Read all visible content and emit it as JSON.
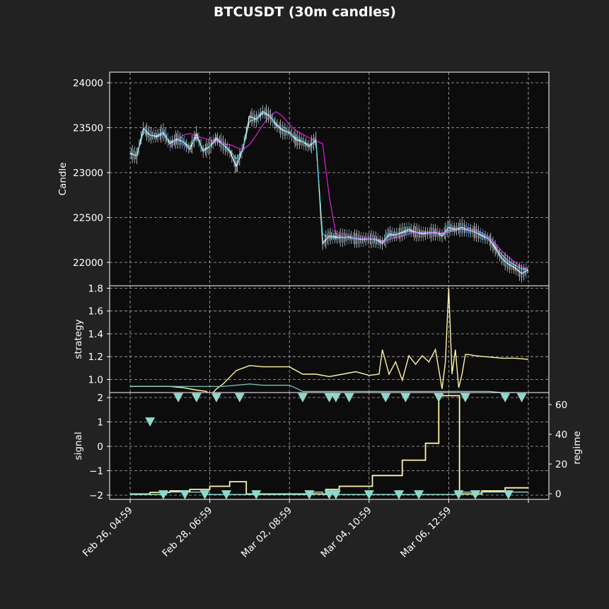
{
  "title": "BTCUSDT (30m candles)",
  "colors": {
    "background": "#222222",
    "axes_bg": "#0c0c0c",
    "text": "#ffffff",
    "grid": "#b0b0b0",
    "candle_line": "#e8e8e8",
    "candle_alt": "#5bb0f0",
    "ema_fast": "#40d0d0",
    "ema_slow": "#e020e0",
    "strategy": "#fff6a8",
    "benchmark": "#7fd0c8",
    "regime": "#fff6a8",
    "signal": "#8fd8cc"
  },
  "x_ticks": [
    "Feb 26, 04:59",
    "Feb 28, 06:59",
    "Mar 02, 08:59",
    "Mar 04, 10:59",
    "Mar 06, 12:59"
  ],
  "chart_data": [
    {
      "type": "line",
      "ylabel": "Candle",
      "yticks": [
        "24000",
        "23500",
        "23000",
        "22500",
        "22000"
      ],
      "ylim": [
        21850,
        24120
      ],
      "x_hours": [
        0,
        4,
        8,
        12,
        16,
        20,
        24,
        28,
        32,
        36,
        40,
        44,
        48,
        52,
        56,
        60,
        64,
        68,
        72,
        76,
        80,
        84,
        88,
        92,
        96,
        100,
        104,
        108,
        112,
        116,
        120,
        124,
        128,
        132,
        136,
        140,
        144,
        148,
        152,
        156,
        160,
        164,
        168,
        172,
        176,
        180,
        184,
        188,
        192,
        196,
        200,
        204,
        208,
        212,
        216,
        220,
        224,
        228,
        232,
        236,
        240
      ],
      "series": [
        {
          "values": [
            23260,
            23230,
            23520,
            23450,
            23440,
            23480,
            23360,
            23410,
            23380,
            23300,
            23460,
            23280,
            23330,
            23420,
            23350,
            23280,
            23120,
            23310,
            23650,
            23620,
            23700,
            23660,
            23560,
            23500,
            23480,
            23400,
            23380,
            23330,
            23400,
            22300,
            22380,
            22370,
            22360,
            22370,
            22350,
            22340,
            22350,
            22340,
            22300,
            22400,
            22390,
            22420,
            22450,
            22420,
            22400,
            22410,
            22420,
            22380,
            22470,
            22450,
            22470,
            22440,
            22420,
            22380,
            22350,
            22250,
            22140,
            22080,
            22040,
            21980,
            22020
          ]
        },
        {
          "values": [
            23250,
            23230,
            23480,
            23450,
            23430,
            23460,
            23380,
            23400,
            23380,
            23330,
            23430,
            23300,
            23330,
            23400,
            23350,
            23290,
            23200,
            23300,
            23600,
            23620,
            23680,
            23650,
            23570,
            23510,
            23470,
            23420,
            23380,
            23350,
            23380,
            22400,
            22360,
            22360,
            22360,
            22360,
            22350,
            22345,
            22345,
            22340,
            22320,
            22380,
            22390,
            22410,
            22430,
            22420,
            22410,
            22410,
            22410,
            22400,
            22440,
            22450,
            22450,
            22440,
            22420,
            22390,
            22350,
            22270,
            22180,
            22110,
            22070,
            22030,
            22020
          ]
        },
        {
          "values": [
            null,
            null,
            null,
            null,
            null,
            null,
            23320,
            23390,
            23450,
            23470,
            23440,
            23420,
            23400,
            23380,
            23360,
            23350,
            23320,
            23300,
            23350,
            23450,
            23560,
            23650,
            23700,
            23650,
            23560,
            23500,
            23460,
            23420,
            23390,
            23360,
            22800,
            22400,
            22370,
            22360,
            22355,
            22350,
            22350,
            22345,
            22330,
            22340,
            22360,
            22380,
            22400,
            22420,
            22420,
            22420,
            22415,
            22410,
            22420,
            22440,
            22450,
            22460,
            22440,
            22410,
            22370,
            22300,
            22220,
            22150,
            22100,
            22050,
            22020
          ]
        }
      ]
    },
    {
      "type": "line",
      "ylabel": "strategy",
      "yticks": [
        "1.8",
        "1.6",
        "1.4",
        "1.2",
        "1.0"
      ],
      "ylim": [
        0.95,
        1.82
      ],
      "x_hours": [
        0,
        8,
        16,
        24,
        32,
        40,
        46,
        48,
        52,
        56,
        64,
        72,
        80,
        88,
        96,
        104,
        112,
        120,
        128,
        136,
        144,
        150,
        152,
        156,
        160,
        164,
        168,
        172,
        176,
        180,
        184,
        188,
        190,
        192,
        194,
        196,
        198,
        200,
        202,
        204,
        208,
        216,
        224,
        232,
        240
      ],
      "series": [
        {
          "values": [
            1.0,
            1.0,
            1.0,
            1.0,
            0.99,
            0.97,
            0.96,
            0.92,
            0.98,
            1.02,
            1.13,
            1.17,
            1.16,
            1.16,
            1.16,
            1.1,
            1.1,
            1.08,
            1.1,
            1.12,
            1.09,
            1.1,
            1.3,
            1.1,
            1.2,
            1.05,
            1.25,
            1.18,
            1.25,
            1.2,
            1.3,
            0.98,
            1.2,
            1.8,
            1.1,
            1.3,
            0.99,
            1.1,
            1.26,
            1.26,
            1.25,
            1.24,
            1.23,
            1.23,
            1.22
          ]
        },
        {
          "values": [
            1.0,
            1.0,
            1.0,
            1.0,
            1.0,
            1.0,
            1.0,
            1.0,
            1.0,
            1.0,
            1.01,
            1.02,
            1.01,
            1.01,
            1.01,
            0.96,
            0.96,
            0.96,
            0.96,
            0.96,
            0.96,
            0.96,
            0.96,
            0.96,
            0.96,
            0.96,
            0.96,
            0.96,
            0.96,
            0.96,
            0.96,
            0.96,
            0.96,
            0.96,
            0.96,
            0.96,
            0.96,
            0.96,
            0.96,
            0.96,
            0.96,
            0.96,
            0.95,
            0.95,
            0.94
          ]
        }
      ]
    },
    {
      "type": "line+scatter",
      "ylabel": "signal",
      "y2label": "regime",
      "yticks": [
        "2",
        "1",
        "0",
        "−1",
        "−2"
      ],
      "ylim": [
        -2.2,
        2.2
      ],
      "y2ticks": [
        "60",
        "40",
        "20",
        "0"
      ],
      "y2lim": [
        -3.5,
        66
      ],
      "regime_steps": [
        [
          0,
          0
        ],
        [
          12,
          1
        ],
        [
          24,
          2
        ],
        [
          36,
          3
        ],
        [
          48,
          5
        ],
        [
          60,
          8
        ],
        [
          70,
          0
        ],
        [
          108,
          0
        ],
        [
          118,
          3
        ],
        [
          126,
          5
        ],
        [
          146,
          12
        ],
        [
          164,
          22
        ],
        [
          178,
          33
        ],
        [
          186,
          64
        ],
        [
          198,
          64
        ],
        [
          198.5,
          0
        ],
        [
          212,
          2
        ],
        [
          226,
          4
        ],
        [
          240,
          4
        ]
      ],
      "markers_top_x_hours": [
        29,
        40,
        52,
        66,
        104,
        120,
        124,
        132,
        154,
        166,
        186,
        202,
        226,
        236
      ],
      "markers_mid_x_hours": [
        12
      ],
      "markers_bottom_x_hours": [
        20,
        33,
        45,
        58,
        76,
        108,
        120,
        124,
        144,
        162,
        174,
        198,
        208,
        228
      ],
      "signal_base_steps": [
        [
          0,
          -2
        ],
        [
          20,
          -2
        ],
        [
          22,
          -1.9
        ],
        [
          44,
          -1.9
        ],
        [
          46,
          -2
        ],
        [
          108,
          -2
        ],
        [
          110,
          -1.9
        ],
        [
          114,
          -1.9
        ],
        [
          116,
          -2
        ],
        [
          194,
          -2
        ],
        [
          196,
          -1.9
        ],
        [
          240,
          -1.9
        ]
      ]
    }
  ]
}
